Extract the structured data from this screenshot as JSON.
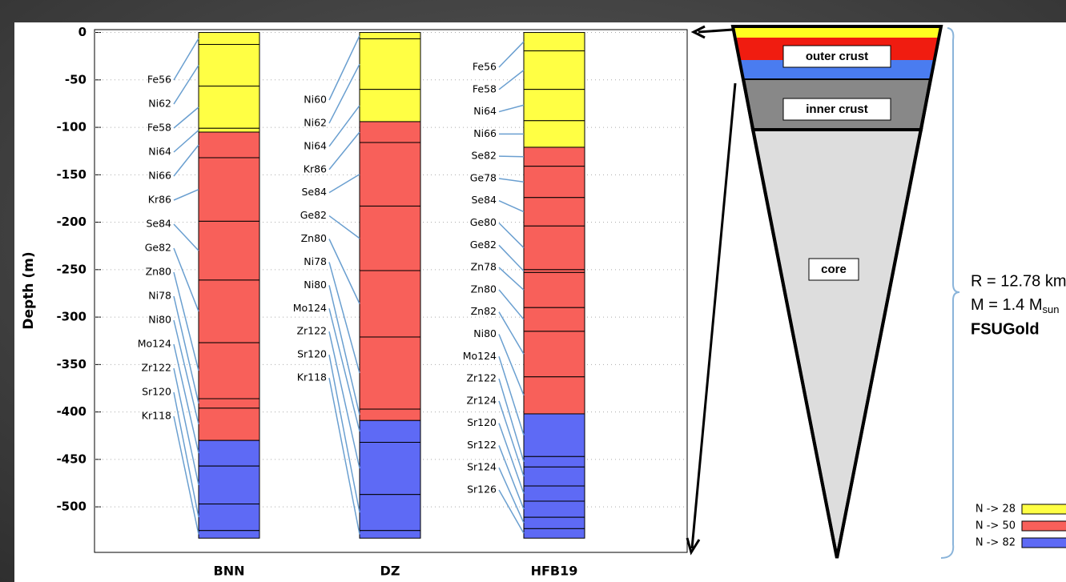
{
  "chart_data": {
    "type": "layer-columns",
    "ylabel": "Depth (m)",
    "ylim": [
      -548,
      3
    ],
    "yticks": [
      0,
      -50,
      -100,
      -150,
      -200,
      -250,
      -300,
      -350,
      -400,
      -450,
      -500
    ],
    "grid": true,
    "groups": [
      {
        "name": "N -> 28",
        "color": "#ffff44"
      },
      {
        "name": "N -> 50",
        "color": "#f8605a"
      },
      {
        "name": "N -> 82",
        "color": "#5e6af5"
      }
    ],
    "columns": [
      {
        "name": "BNN",
        "layers": [
          {
            "label": "Fe56",
            "bottom": -12.6,
            "group": 0
          },
          {
            "label": "Ni62",
            "bottom": -56.5,
            "group": 0
          },
          {
            "label": "Fe58",
            "bottom": -101,
            "group": 0
          },
          {
            "label": "Ni64",
            "bottom": -105,
            "group": 0
          },
          {
            "label": "Ni66",
            "bottom": -132,
            "group": 1
          },
          {
            "label": "Kr86",
            "bottom": -199,
            "group": 1
          },
          {
            "label": "Se84",
            "bottom": -261,
            "group": 1
          },
          {
            "label": "Ge82",
            "bottom": -327,
            "group": 1
          },
          {
            "label": "Zn80",
            "bottom": -386,
            "group": 1
          },
          {
            "label": "Ni78",
            "bottom": -396,
            "group": 1
          },
          {
            "label": "Ni80",
            "bottom": -430,
            "group": 1
          },
          {
            "label": "Mo124",
            "bottom": -457,
            "group": 2
          },
          {
            "label": "Zr122",
            "bottom": -497,
            "group": 2
          },
          {
            "label": "Sr120",
            "bottom": -525,
            "group": 2
          },
          {
            "label": "Kr118",
            "bottom": -533,
            "group": 2
          }
        ]
      },
      {
        "name": "DZ",
        "layers": [
          {
            "label": "Ni60",
            "bottom": -6.7,
            "group": 0
          },
          {
            "label": "Ni62",
            "bottom": -60,
            "group": 0
          },
          {
            "label": "Ni64",
            "bottom": -94,
            "group": 0
          },
          {
            "label": "Kr86",
            "bottom": -116,
            "group": 1
          },
          {
            "label": "Se84",
            "bottom": -183,
            "group": 1
          },
          {
            "label": "Ge82",
            "bottom": -251,
            "group": 1
          },
          {
            "label": "Zn80",
            "bottom": -321,
            "group": 1
          },
          {
            "label": "Ni78",
            "bottom": -397,
            "group": 1
          },
          {
            "label": "Ni80",
            "bottom": -409,
            "group": 1
          },
          {
            "label": "Mo124",
            "bottom": -432,
            "group": 2
          },
          {
            "label": "Zr122",
            "bottom": -487,
            "group": 2
          },
          {
            "label": "Sr120",
            "bottom": -525,
            "group": 2
          },
          {
            "label": "Kr118",
            "bottom": -533,
            "group": 2
          }
        ]
      },
      {
        "name": "HFB19",
        "layers": [
          {
            "label": "Fe56",
            "bottom": -19.4,
            "group": 0
          },
          {
            "label": "Fe58",
            "bottom": -60,
            "group": 0
          },
          {
            "label": "Ni64",
            "bottom": -93,
            "group": 0
          },
          {
            "label": "Ni66",
            "bottom": -121,
            "group": 0
          },
          {
            "label": "Se82",
            "bottom": -141,
            "group": 1
          },
          {
            "label": "Ge78",
            "bottom": -174,
            "group": 1
          },
          {
            "label": "Se84",
            "bottom": -204,
            "group": 1
          },
          {
            "label": "Ge80",
            "bottom": -250,
            "group": 1
          },
          {
            "label": "Ge82",
            "bottom": -253,
            "group": 1
          },
          {
            "label": "Zn78",
            "bottom": -290,
            "group": 1
          },
          {
            "label": "Zn80",
            "bottom": -315,
            "group": 1
          },
          {
            "label": "Zn82",
            "bottom": -363,
            "group": 1
          },
          {
            "label": "Ni80",
            "bottom": -402,
            "group": 1
          },
          {
            "label": "Mo124",
            "bottom": -447,
            "group": 2
          },
          {
            "label": "Zr122",
            "bottom": -458,
            "group": 2
          },
          {
            "label": "Zr124",
            "bottom": -478,
            "group": 2
          },
          {
            "label": "Sr120",
            "bottom": -494,
            "group": 2
          },
          {
            "label": "Sr122",
            "bottom": -511,
            "group": 2
          },
          {
            "label": "Sr124",
            "bottom": -523,
            "group": 2
          },
          {
            "label": "Sr126",
            "bottom": -533,
            "group": 2
          }
        ]
      }
    ]
  },
  "diagram": {
    "outer_crust": "outer crust",
    "inner_crust": "inner crust",
    "core": "core",
    "radius": "R = 12.78 km",
    "mass": "M = 1.4 M",
    "mass_subscript": "sun",
    "model": "FSUGold"
  }
}
